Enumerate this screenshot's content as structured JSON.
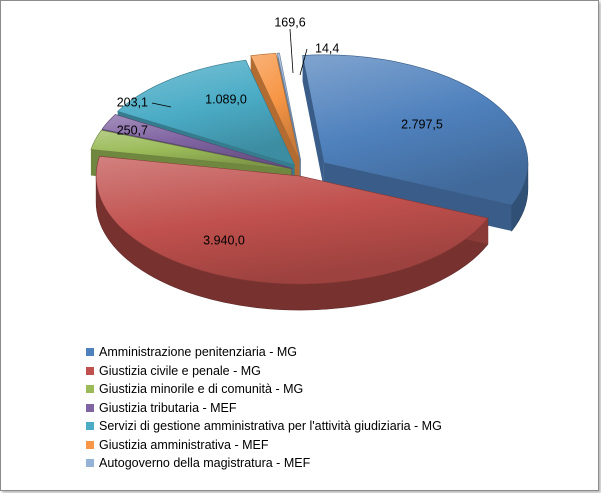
{
  "chart_data": {
    "type": "pie",
    "title": "",
    "style": "3d-exploded",
    "legend_position": "bottom",
    "slices": [
      {
        "name": "Amministrazione penitenziaria - MG",
        "value": 2797.5,
        "label": "2.797,5",
        "color": "#4f81bd"
      },
      {
        "name": "Giustizia civile e penale - MG",
        "value": 3940.0,
        "label": "3.940,0",
        "color": "#c0504d"
      },
      {
        "name": "Giustizia minorile e di comunità - MG",
        "value": 250.7,
        "label": "250,7",
        "color": "#9bbb59"
      },
      {
        "name": "Giustizia tributaria - MEF",
        "value": 203.1,
        "label": "203,1",
        "color": "#8064a2"
      },
      {
        "name": "Servizi di gestione amministrativa per l'attività giudiziaria - MG",
        "value": 1089.0,
        "label": "1.089,0",
        "color": "#4bacc6"
      },
      {
        "name": "Giustizia amministrativa - MEF",
        "value": 169.6,
        "label": "169,6",
        "color": "#f79646"
      },
      {
        "name": "Autogoverno della magistratura - MEF",
        "value": 14.4,
        "label": "14,4",
        "color": "#95b3d7"
      }
    ]
  }
}
